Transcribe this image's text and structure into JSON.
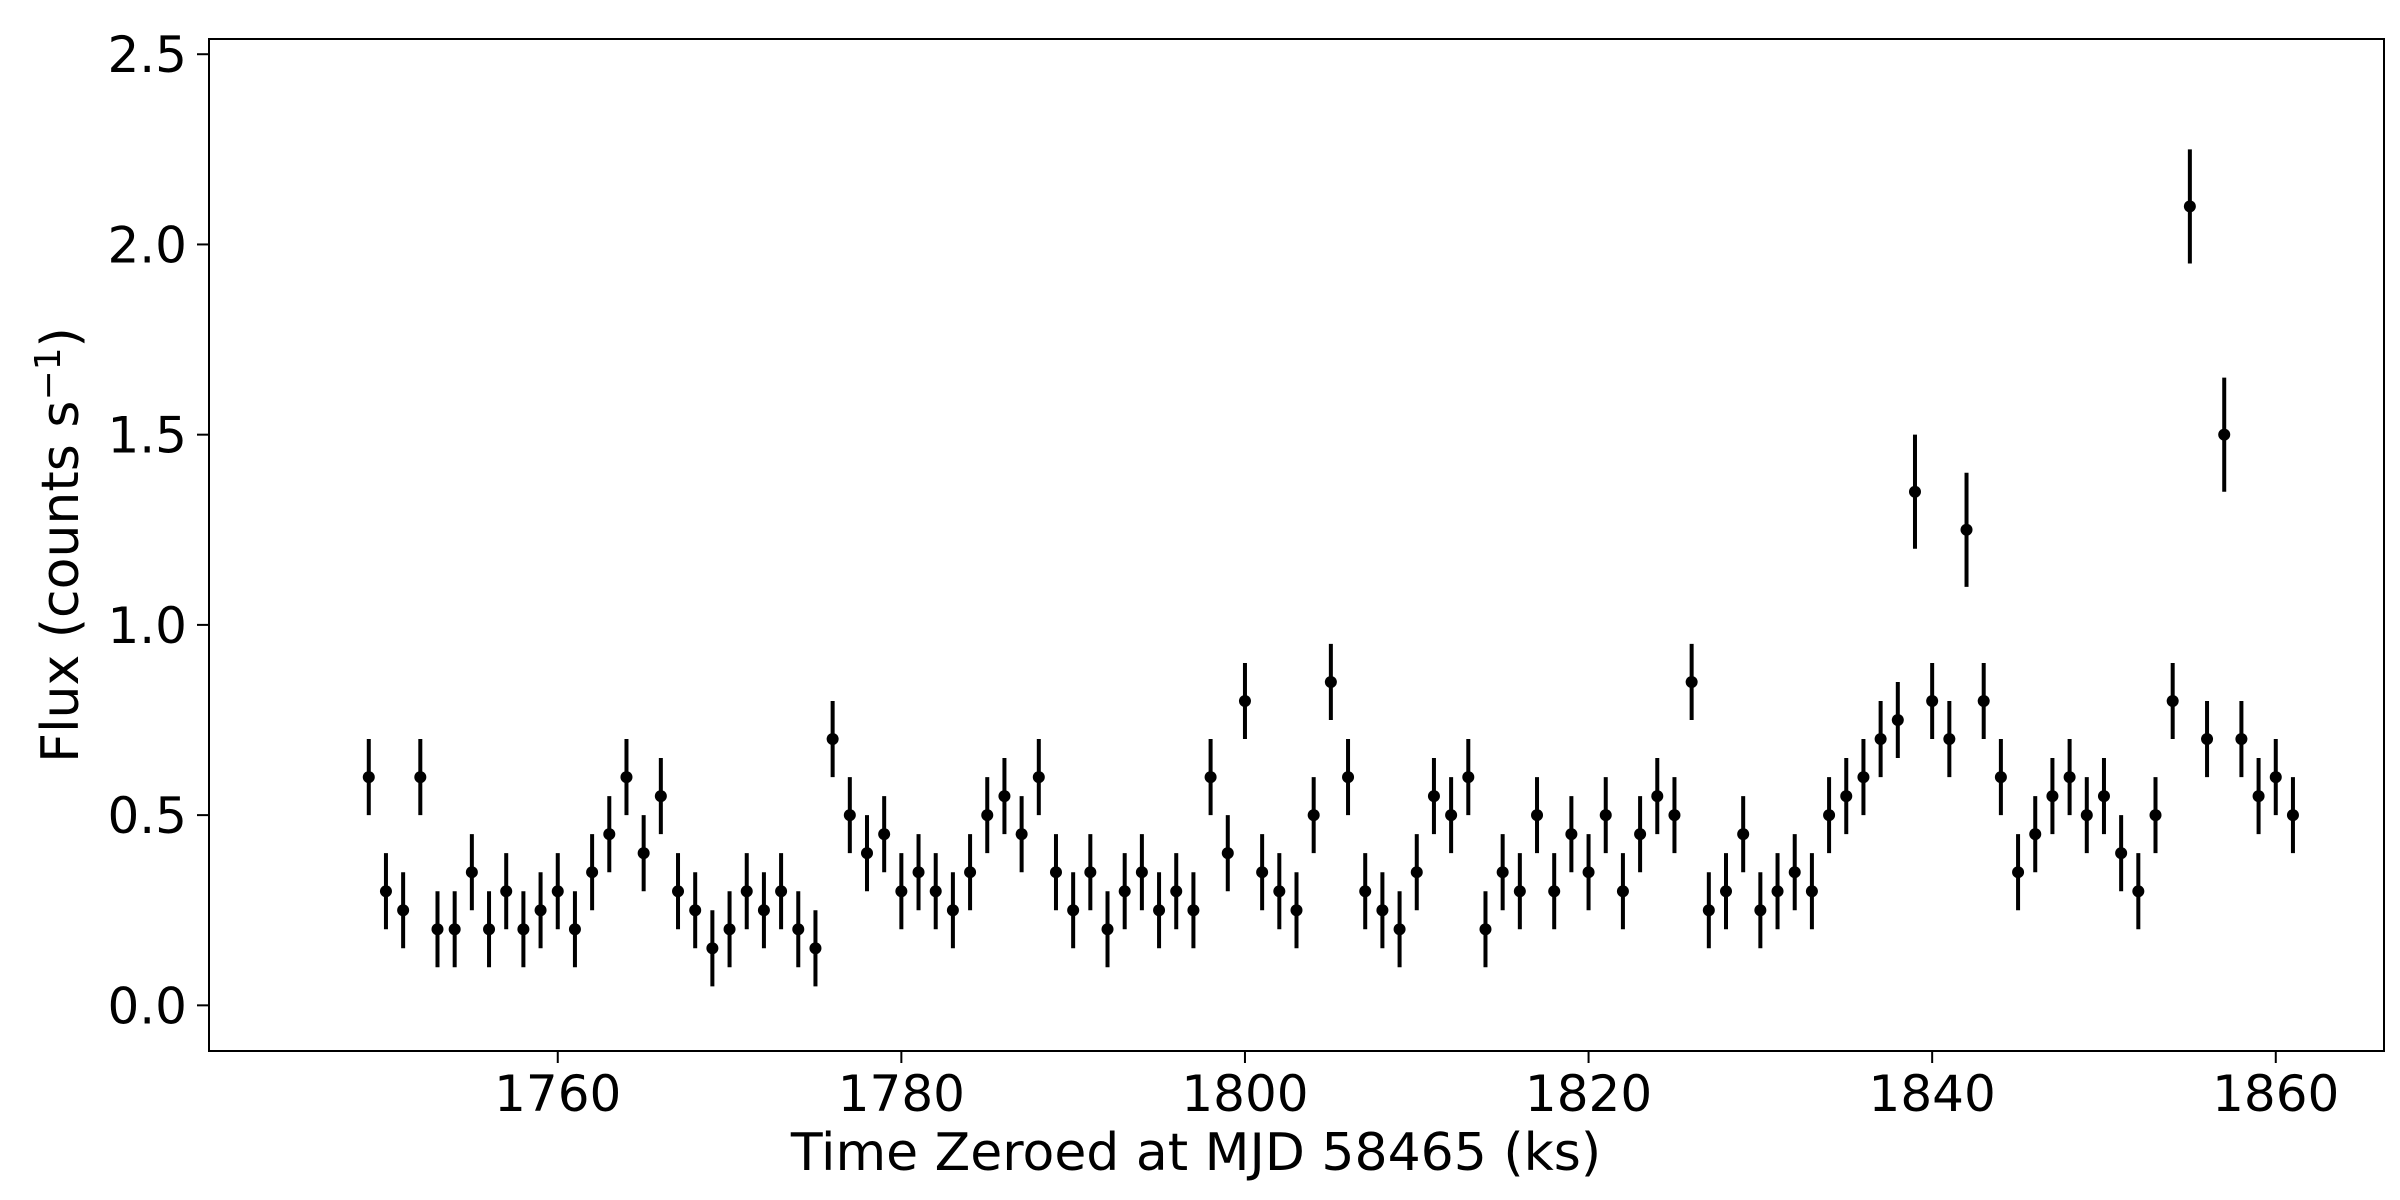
{
  "chart_data": {
    "type": "errorbar",
    "xlabel": "Time Zeroed at MJD 58465 (ks)",
    "ylabel": {
      "text": "Flux (counts s",
      "sup": "−1",
      "end": ")"
    },
    "xlim": [
      1739.7,
      1866.3
    ],
    "ylim": [
      -0.12,
      2.54
    ],
    "xticks": [
      1760,
      1780,
      1800,
      1820,
      1840,
      1860
    ],
    "yticks": [
      {
        "value": 0,
        "label": "0.0"
      },
      0.5,
      {
        "value": 1,
        "label": "1.0"
      },
      1.5,
      {
        "value": 2,
        "label": "2.0"
      },
      2.5
    ],
    "series": [
      {
        "color": "#000000",
        "x": [
          1749,
          1750,
          1751,
          1752,
          1753,
          1754,
          1755,
          1756,
          1757,
          1758,
          1759,
          1760,
          1761,
          1762,
          1763,
          1764,
          1765,
          1766,
          1767,
          1768,
          1769,
          1770,
          1771,
          1772,
          1773,
          1774,
          1775,
          1776,
          1777,
          1778,
          1779,
          1780,
          1781,
          1782,
          1783,
          1784,
          1785,
          1786,
          1787,
          1788,
          1789,
          1790,
          1791,
          1792,
          1793,
          1794,
          1795,
          1796,
          1797,
          1798,
          1799,
          1800,
          1801,
          1802,
          1803,
          1804,
          1805,
          1806,
          1807,
          1808,
          1809,
          1810,
          1811,
          1812,
          1813,
          1814,
          1815,
          1816,
          1817,
          1818,
          1819,
          1820,
          1821,
          1822,
          1823,
          1824,
          1825,
          1826,
          1827,
          1828,
          1829,
          1830,
          1831,
          1832,
          1833,
          1834,
          1835,
          1836,
          1837,
          1838,
          1839,
          1840,
          1841,
          1842,
          1843,
          1844,
          1845,
          1846,
          1847,
          1848,
          1849,
          1850,
          1851,
          1852,
          1853,
          1854,
          1855,
          1856,
          1857,
          1858,
          1859,
          1860,
          1861
        ],
        "values": [
          0.6,
          0.3,
          0.25,
          0.6,
          0.2,
          0.2,
          0.35,
          0.2,
          0.3,
          0.2,
          0.25,
          0.3,
          0.2,
          0.35,
          0.45,
          0.6,
          0.4,
          0.55,
          0.3,
          0.25,
          0.15,
          0.2,
          0.3,
          0.25,
          0.3,
          0.2,
          0.15,
          0.7,
          0.5,
          0.4,
          0.45,
          0.3,
          0.35,
          0.3,
          0.25,
          0.35,
          0.5,
          0.55,
          0.45,
          0.6,
          0.35,
          0.25,
          0.35,
          0.2,
          0.3,
          0.35,
          0.25,
          0.3,
          0.25,
          0.6,
          0.4,
          0.8,
          0.35,
          0.3,
          0.25,
          0.5,
          0.85,
          0.6,
          0.3,
          0.25,
          0.2,
          0.35,
          0.55,
          0.5,
          0.6,
          0.2,
          0.35,
          0.3,
          0.5,
          0.3,
          0.45,
          0.35,
          0.5,
          0.3,
          0.45,
          0.55,
          0.5,
          0.85,
          0.25,
          0.3,
          0.45,
          0.25,
          0.3,
          0.35,
          0.3,
          0.5,
          0.55,
          0.6,
          0.7,
          0.75,
          1.35,
          0.8,
          0.7,
          1.25,
          0.8,
          0.6,
          0.35,
          0.45,
          0.55,
          0.6,
          0.5,
          0.55,
          0.4,
          0.3,
          0.5,
          0.8,
          2.1,
          0.7,
          1.5,
          0.7,
          0.55,
          0.6,
          0.5
        ],
        "errors": [
          0.1,
          0.1,
          0.1,
          0.1,
          0.1,
          0.1,
          0.1,
          0.1,
          0.1,
          0.1,
          0.1,
          0.1,
          0.1,
          0.1,
          0.1,
          0.1,
          0.1,
          0.1,
          0.1,
          0.1,
          0.1,
          0.1,
          0.1,
          0.1,
          0.1,
          0.1,
          0.1,
          0.1,
          0.1,
          0.1,
          0.1,
          0.1,
          0.1,
          0.1,
          0.1,
          0.1,
          0.1,
          0.1,
          0.1,
          0.1,
          0.1,
          0.1,
          0.1,
          0.1,
          0.1,
          0.1,
          0.1,
          0.1,
          0.1,
          0.1,
          0.1,
          0.1,
          0.1,
          0.1,
          0.1,
          0.1,
          0.1,
          0.1,
          0.1,
          0.1,
          0.1,
          0.1,
          0.1,
          0.1,
          0.1,
          0.1,
          0.1,
          0.1,
          0.1,
          0.1,
          0.1,
          0.1,
          0.1,
          0.1,
          0.1,
          0.1,
          0.1,
          0.1,
          0.1,
          0.1,
          0.1,
          0.1,
          0.1,
          0.1,
          0.1,
          0.1,
          0.1,
          0.1,
          0.1,
          0.1,
          0.15,
          0.1,
          0.1,
          0.15,
          0.1,
          0.1,
          0.1,
          0.1,
          0.1,
          0.1,
          0.1,
          0.1,
          0.1,
          0.1,
          0.1,
          0.1,
          0.15,
          0.1,
          0.15,
          0.1,
          0.1,
          0.1,
          0.1
        ]
      }
    ]
  }
}
